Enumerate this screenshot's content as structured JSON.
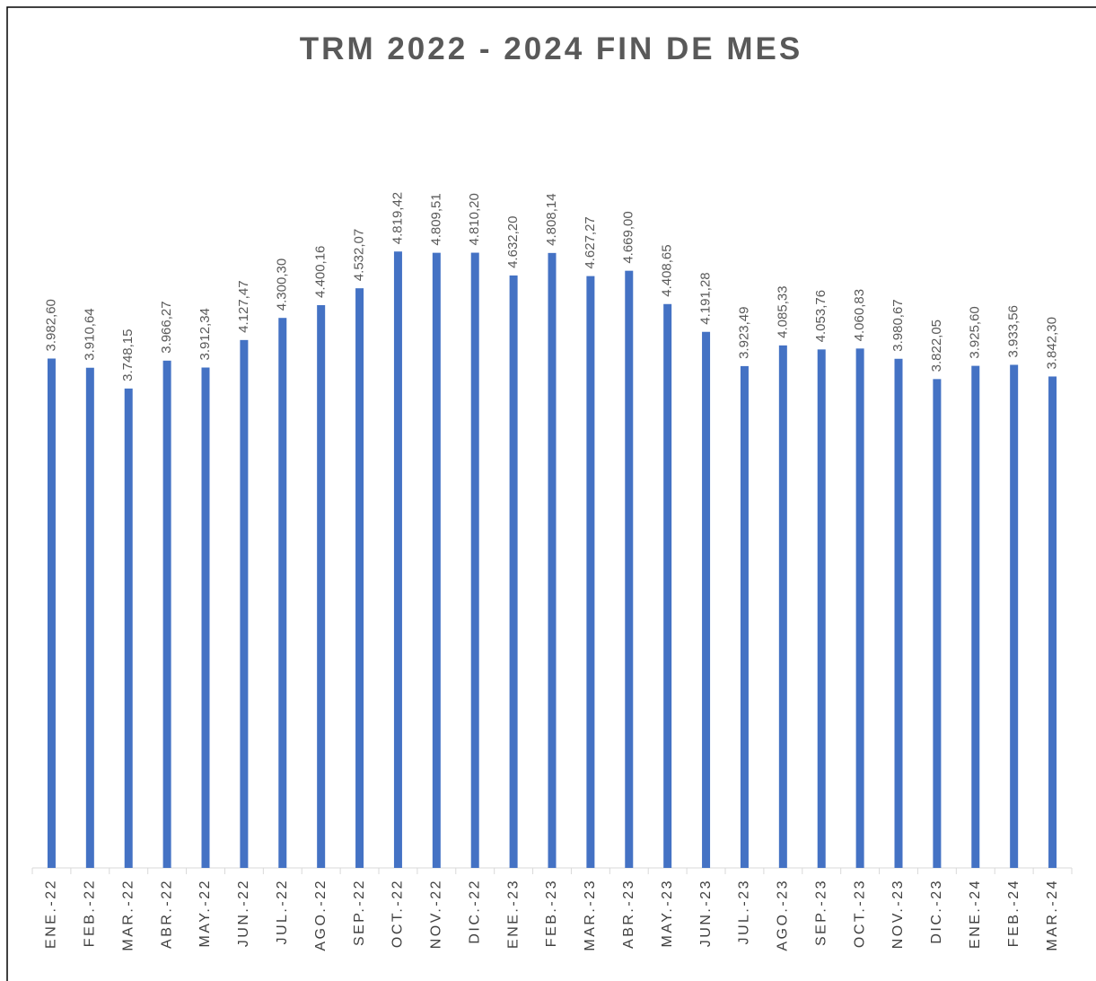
{
  "chart_data": {
    "type": "bar",
    "title": "TRM 2022 - 2024 FIN DE MES",
    "categories": [
      "ENE.-22",
      "FEB.-22",
      "MAR.-22",
      "ABR.-22",
      "MAY.-22",
      "JUN.-22",
      "JUL.-22",
      "AGO.-22",
      "SEP.-22",
      "OCT.-22",
      "NOV.-22",
      "DIC.-22",
      "ENE.-23",
      "FEB.-23",
      "MAR.-23",
      "ABR.-23",
      "MAY.-23",
      "JUN.-23",
      "JUL.-23",
      "AGO.-23",
      "SEP.-23",
      "OCT.-23",
      "NOV.-23",
      "DIC.-23",
      "ENE.-24",
      "FEB.-24",
      "MAR.-24"
    ],
    "values": [
      3982.6,
      3910.64,
      3748.15,
      3966.27,
      3912.34,
      4127.47,
      4300.3,
      4400.16,
      4532.07,
      4819.42,
      4809.51,
      4810.2,
      4632.2,
      4808.14,
      4627.27,
      4669.0,
      4408.65,
      4191.28,
      3923.49,
      4085.33,
      4053.76,
      4060.83,
      3980.67,
      3822.05,
      3925.6,
      3933.56,
      3842.3
    ],
    "value_labels": [
      "3.982,60",
      "3.910,64",
      "3.748,15",
      "3.966,27",
      "3.912,34",
      "4.127,47",
      "4.300,30",
      "4.400,16",
      "4.532,07",
      "4.819,42",
      "4.809,51",
      "4.810,20",
      "4.632,20",
      "4.808,14",
      "4.627,27",
      "4.669,00",
      "4.408,65",
      "4.191,28",
      "3.923,49",
      "4.085,33",
      "4.053,76",
      "4.060,83",
      "3.980,67",
      "3.822,05",
      "3.925,60",
      "3.933,56",
      "3.842,30"
    ],
    "color": "#4472c4",
    "ylim": [
      0,
      6000
    ]
  }
}
